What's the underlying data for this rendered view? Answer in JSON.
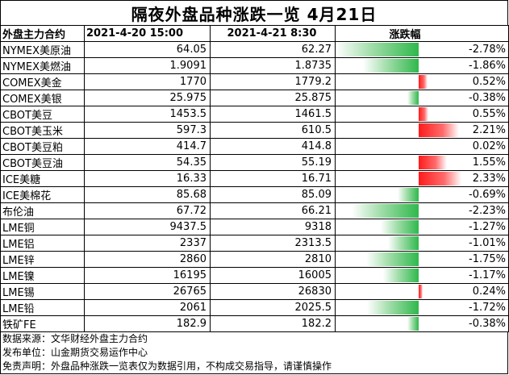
{
  "title": "隔夜外盘品种涨跌一览 4月21日",
  "header": {
    "name": "外盘主力合约",
    "date_a": "2021-4-20 15:00",
    "date_b": "2021-4-21 8:30",
    "change": "涨跌幅"
  },
  "rows": [
    {
      "name": "NYMEX美原油",
      "a": "64.05",
      "b": "62.27",
      "pct": "-2.78%",
      "value": -2.78
    },
    {
      "name": "NYMEX美燃油",
      "a": "1.9091",
      "b": "1.8735",
      "pct": "-1.86%",
      "value": -1.86
    },
    {
      "name": "COMEX美金",
      "a": "1770",
      "b": "1779.2",
      "pct": "0.52%",
      "value": 0.52
    },
    {
      "name": "COMEX美银",
      "a": "25.975",
      "b": "25.875",
      "pct": "-0.38%",
      "value": -0.38
    },
    {
      "name": "CBOT美豆",
      "a": "1453.5",
      "b": "1461.5",
      "pct": "0.55%",
      "value": 0.55
    },
    {
      "name": "CBOT美玉米",
      "a": "597.3",
      "b": "610.5",
      "pct": "2.21%",
      "value": 2.21
    },
    {
      "name": "CBOT美豆粕",
      "a": "414.7",
      "b": "414.8",
      "pct": "0.02%",
      "value": 0.02
    },
    {
      "name": "CBOT美豆油",
      "a": "54.35",
      "b": "55.19",
      "pct": "1.55%",
      "value": 1.55
    },
    {
      "name": "ICE美糖",
      "a": "16.33",
      "b": "16.71",
      "pct": "2.33%",
      "value": 2.33
    },
    {
      "name": "ICE美棉花",
      "a": "85.68",
      "b": "85.09",
      "pct": "-0.69%",
      "value": -0.69
    },
    {
      "name": "布伦油",
      "a": "67.72",
      "b": "66.21",
      "pct": "-2.23%",
      "value": -2.23
    },
    {
      "name": "LME铜",
      "a": "9437.5",
      "b": "9318",
      "pct": "-1.27%",
      "value": -1.27
    },
    {
      "name": "LME铝",
      "a": "2337",
      "b": "2313.5",
      "pct": "-1.01%",
      "value": -1.01
    },
    {
      "name": "LME锌",
      "a": "2860",
      "b": "2810",
      "pct": "-1.75%",
      "value": -1.75
    },
    {
      "name": "LME镍",
      "a": "16195",
      "b": "16005",
      "pct": "-1.17%",
      "value": -1.17
    },
    {
      "name": "LME锡",
      "a": "26765",
      "b": "26830",
      "pct": "0.24%",
      "value": 0.24
    },
    {
      "name": "LME铅",
      "a": "2061",
      "b": "2025.5",
      "pct": "-1.72%",
      "value": -1.72
    },
    {
      "name": "铁矿FE",
      "a": "182.9",
      "b": "182.2",
      "pct": "-0.38%",
      "value": -0.38
    }
  ],
  "colors": {
    "negative": "#2fb84c",
    "positive": "#ff1a1a"
  },
  "notes": [
    "数据来源：文华财经外盘主力合约",
    "发布单位：山金期货交易运作中心",
    "免责声明：外盘品种涨跌一览表仅为数据引用，不构成交易指导，请谨慎操作"
  ]
}
